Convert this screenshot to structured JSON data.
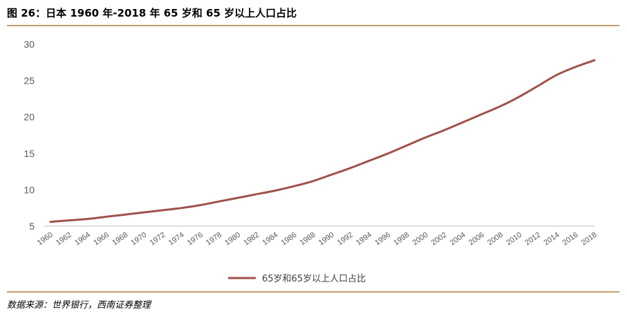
{
  "header": {
    "title": "图 26：日本 1960 年-2018 年 65 岁和 65 岁以上人口占比"
  },
  "footer": {
    "source": "数据来源：世界银行，西南证券整理"
  },
  "colors": {
    "series": "#a0504c",
    "rule": "#c69c6d",
    "axis": "#bfbfbf"
  },
  "chart_data": {
    "type": "line",
    "title": "",
    "xlabel": "",
    "ylabel": "",
    "ylim": [
      5,
      30
    ],
    "yticks": [
      5,
      10,
      15,
      20,
      25,
      30
    ],
    "xticks": [
      "1960",
      "1962",
      "1964",
      "1966",
      "1968",
      "1970",
      "1972",
      "1974",
      "1976",
      "1978",
      "1980",
      "1982",
      "1984",
      "1986",
      "1988",
      "1990",
      "1992",
      "1994",
      "1996",
      "1998",
      "2000",
      "2002",
      "2004",
      "2006",
      "2008",
      "2010",
      "2012",
      "2014",
      "2016",
      "2018"
    ],
    "grid": false,
    "legend": "bottom",
    "series": [
      {
        "name": "65岁和65岁以上人口占比",
        "x": [
          1960,
          1962,
          1964,
          1966,
          1968,
          1970,
          1972,
          1974,
          1976,
          1978,
          1980,
          1982,
          1984,
          1986,
          1988,
          1990,
          1992,
          1994,
          1996,
          1998,
          2000,
          2002,
          2004,
          2006,
          2008,
          2010,
          2012,
          2014,
          2016,
          2018
        ],
        "values": [
          5.6,
          5.8,
          6.0,
          6.3,
          6.6,
          6.9,
          7.2,
          7.5,
          7.9,
          8.4,
          8.9,
          9.4,
          9.9,
          10.5,
          11.2,
          12.1,
          13.0,
          14.0,
          15.0,
          16.1,
          17.2,
          18.2,
          19.3,
          20.4,
          21.5,
          22.8,
          24.3,
          25.8,
          26.9,
          27.8
        ]
      }
    ]
  }
}
